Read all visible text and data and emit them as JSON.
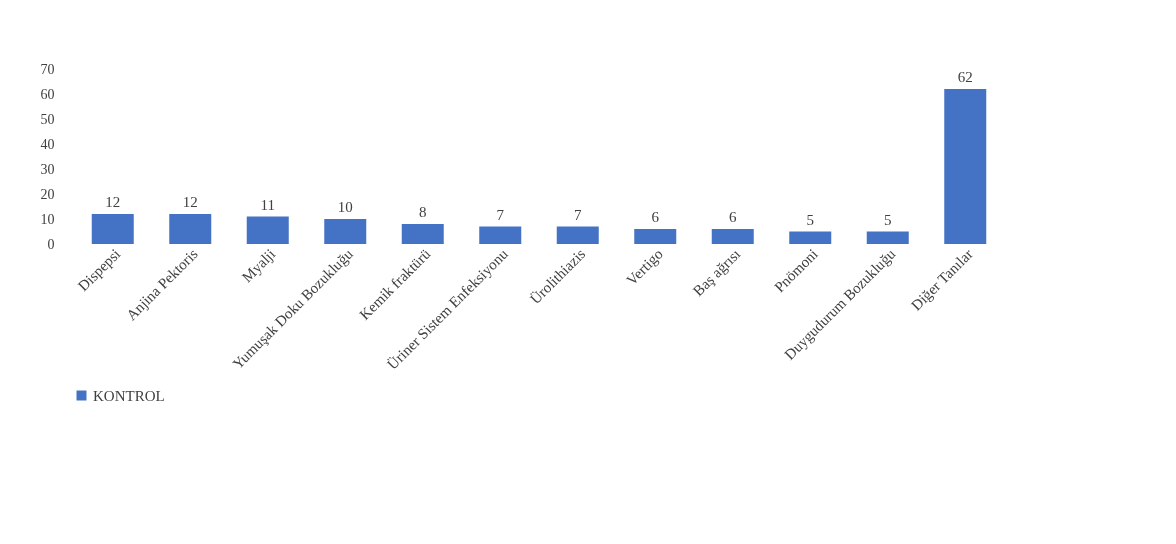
{
  "chart_data": {
    "type": "bar",
    "categories": [
      "Dispepsi",
      "Anjina Pektoris",
      "Myalji",
      "Yumuşak Doku Bozukluğu",
      "Kemik fraktürü",
      "Üriner Sistem Enfeksiyonu",
      "Ürolithiazis",
      "Vertigo",
      "Baş ağrısı",
      "Pnömoni",
      "Duygudurum Bozukluğu",
      "Diğer Tanılar"
    ],
    "series": [
      {
        "name": "KONTROL",
        "color": "#4472c4",
        "values": [
          12,
          12,
          11,
          10,
          8,
          7,
          7,
          6,
          6,
          5,
          5,
          62
        ]
      }
    ],
    "ylim": [
      0,
      70
    ],
    "yticks": [
      0,
      10,
      20,
      30,
      40,
      50,
      60,
      70
    ],
    "data_labels": true,
    "legend": "bottom",
    "grid": false
  }
}
